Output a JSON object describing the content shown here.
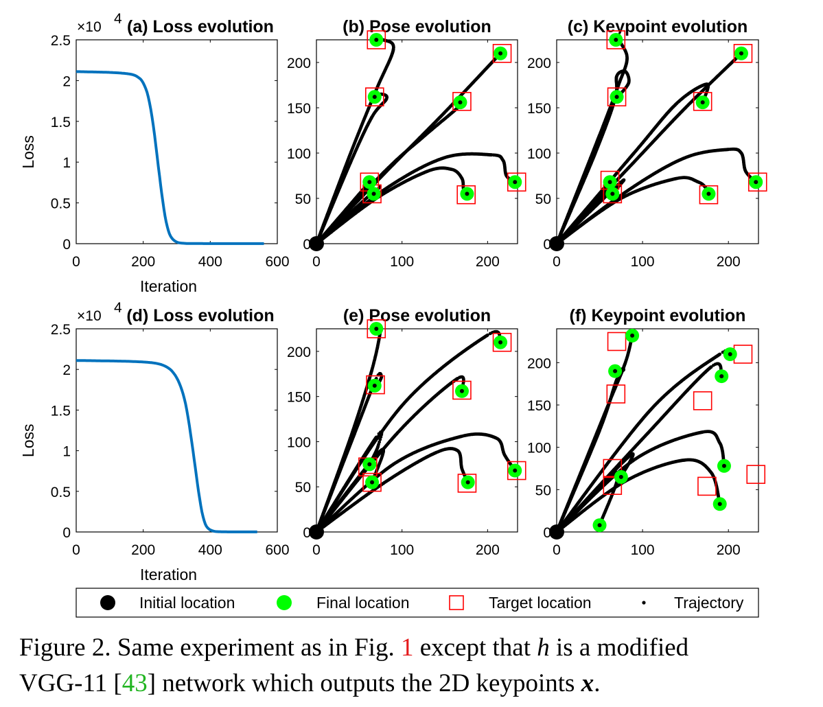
{
  "chart_data": [
    {
      "panel": "a",
      "type": "line",
      "title": "(a) Loss evolution",
      "xlabel": "Iteration",
      "ylabel": "Loss",
      "y_exponent_label": "×10",
      "y_exponent": "4",
      "xlim": [
        0,
        600
      ],
      "ylim": [
        0,
        2.5
      ],
      "xticks": [
        "0",
        "200",
        "400",
        "600"
      ],
      "yticks": [
        "0",
        "0.5",
        "1",
        "1.5",
        "2",
        "2.5"
      ],
      "series": [
        {
          "color": "#0072bd",
          "x": [
            0,
            100,
            160,
            185,
            200,
            215,
            230,
            245,
            255,
            265,
            275,
            285,
            300,
            320,
            350,
            400,
            450,
            500,
            560
          ],
          "y": [
            2.11,
            2.1,
            2.08,
            2.04,
            1.97,
            1.8,
            1.45,
            0.95,
            0.62,
            0.34,
            0.16,
            0.07,
            0.02,
            0.005,
            0.002,
            0.001,
            0.001,
            0.001,
            0.001
          ]
        }
      ]
    },
    {
      "panel": "b",
      "type": "scatter",
      "title": "(b) Pose evolution",
      "xlim": [
        0,
        235
      ],
      "ylim": [
        0,
        225
      ],
      "xticks": [
        "0",
        "100",
        "200"
      ],
      "yticks": [
        "0",
        "50",
        "100",
        "150",
        "200"
      ],
      "initial": [
        0,
        0
      ],
      "final": [
        [
          70,
          225
        ],
        [
          68,
          162
        ],
        [
          62,
          68
        ],
        [
          67,
          55
        ],
        [
          168,
          156
        ],
        [
          215,
          210
        ],
        [
          232,
          68
        ],
        [
          176,
          55
        ]
      ],
      "targets": [
        [
          70,
          225
        ],
        [
          68,
          162
        ],
        [
          62,
          68
        ],
        [
          65,
          55
        ],
        [
          170,
          157
        ],
        [
          217,
          210
        ],
        [
          234,
          68
        ],
        [
          175,
          54
        ]
      ],
      "trajectories": [
        [
          [
            0,
            0
          ],
          [
            40,
            100
          ],
          [
            70,
            170
          ],
          [
            90,
            215
          ],
          [
            78,
            225
          ],
          [
            70,
            225
          ]
        ],
        [
          [
            0,
            0
          ],
          [
            40,
            90
          ],
          [
            65,
            140
          ],
          [
            82,
            160
          ],
          [
            76,
            165
          ],
          [
            68,
            162
          ]
        ],
        [
          [
            0,
            0
          ],
          [
            62,
            68
          ]
        ],
        [
          [
            0,
            0
          ],
          [
            70,
            60
          ],
          [
            67,
            55
          ]
        ],
        [
          [
            0,
            0
          ],
          [
            80,
            80
          ],
          [
            125,
            118
          ],
          [
            165,
            150
          ],
          [
            168,
            156
          ]
        ],
        [
          [
            0,
            0
          ],
          [
            80,
            78
          ],
          [
            150,
            145
          ],
          [
            215,
            210
          ]
        ],
        [
          [
            0,
            0
          ],
          [
            80,
            60
          ],
          [
            150,
            95
          ],
          [
            205,
            98
          ],
          [
            218,
            92
          ],
          [
            222,
            75
          ],
          [
            232,
            68
          ]
        ],
        [
          [
            0,
            0
          ],
          [
            70,
            50
          ],
          [
            130,
            80
          ],
          [
            158,
            82
          ],
          [
            170,
            72
          ],
          [
            172,
            60
          ],
          [
            176,
            55
          ]
        ]
      ]
    },
    {
      "panel": "c",
      "type": "scatter",
      "title": "(c) Keypoint evolution",
      "xlim": [
        0,
        235
      ],
      "ylim": [
        0,
        225
      ],
      "xticks": [
        "0",
        "100",
        "200"
      ],
      "yticks": [
        "0",
        "50",
        "100",
        "150",
        "200"
      ],
      "initial": [
        0,
        0
      ],
      "final": [
        [
          69,
          225
        ],
        [
          70,
          162
        ],
        [
          62,
          68
        ],
        [
          65,
          55
        ],
        [
          170,
          156
        ],
        [
          215,
          210
        ],
        [
          232,
          68
        ],
        [
          177,
          55
        ]
      ],
      "targets": [
        [
          69,
          225
        ],
        [
          70,
          162
        ],
        [
          62,
          70
        ],
        [
          65,
          55
        ],
        [
          170,
          157
        ],
        [
          217,
          210
        ],
        [
          234,
          68
        ],
        [
          177,
          54
        ]
      ],
      "trajectories": [
        [
          [
            0,
            0
          ],
          [
            50,
            120
          ],
          [
            72,
            175
          ],
          [
            82,
            205
          ],
          [
            72,
            225
          ]
        ],
        [
          [
            0,
            0
          ],
          [
            45,
            100
          ],
          [
            68,
            160
          ],
          [
            70,
            185
          ],
          [
            80,
            190
          ],
          [
            84,
            178
          ],
          [
            74,
            165
          ],
          [
            70,
            162
          ]
        ],
        [
          [
            0,
            0
          ],
          [
            62,
            68
          ]
        ],
        [
          [
            0,
            0
          ],
          [
            75,
            68
          ],
          [
            65,
            55
          ]
        ],
        [
          [
            0,
            0
          ],
          [
            90,
            100
          ],
          [
            140,
            155
          ],
          [
            175,
            176
          ],
          [
            170,
            156
          ]
        ],
        [
          [
            0,
            0
          ],
          [
            85,
            85
          ],
          [
            150,
            150
          ],
          [
            215,
            210
          ]
        ],
        [
          [
            0,
            0
          ],
          [
            85,
            60
          ],
          [
            150,
            95
          ],
          [
            200,
            104
          ],
          [
            215,
            100
          ],
          [
            220,
            80
          ],
          [
            232,
            68
          ]
        ],
        [
          [
            0,
            0
          ],
          [
            75,
            50
          ],
          [
            140,
            72
          ],
          [
            165,
            68
          ],
          [
            175,
            60
          ],
          [
            177,
            55
          ]
        ]
      ]
    },
    {
      "panel": "d",
      "type": "line",
      "title": "(d) Loss evolution",
      "xlabel": "Iteration",
      "ylabel": "Loss",
      "y_exponent_label": "×10",
      "y_exponent": "4",
      "xlim": [
        0,
        600
      ],
      "ylim": [
        0,
        2.5
      ],
      "xticks": [
        "0",
        "200",
        "400",
        "600"
      ],
      "yticks": [
        "0",
        "0.5",
        "1",
        "1.5",
        "2",
        "2.5"
      ],
      "series": [
        {
          "color": "#0072bd",
          "x": [
            0,
            150,
            230,
            270,
            295,
            315,
            330,
            345,
            355,
            365,
            375,
            385,
            395,
            410,
            430,
            460,
            500,
            540
          ],
          "y": [
            2.11,
            2.1,
            2.08,
            2.03,
            1.93,
            1.75,
            1.5,
            1.1,
            0.8,
            0.5,
            0.25,
            0.1,
            0.04,
            0.01,
            0.003,
            0.001,
            0.001,
            0.001
          ]
        }
      ]
    },
    {
      "panel": "e",
      "type": "scatter",
      "title": "(e) Pose evolution",
      "xlim": [
        0,
        235
      ],
      "ylim": [
        0,
        225
      ],
      "xticks": [
        "0",
        "100",
        "200"
      ],
      "yticks": [
        "0",
        "50",
        "100",
        "150",
        "200"
      ],
      "initial": [
        0,
        0
      ],
      "final": [
        [
          70,
          225
        ],
        [
          68,
          162
        ],
        [
          62,
          75
        ],
        [
          65,
          55
        ],
        [
          170,
          156
        ],
        [
          215,
          210
        ],
        [
          232,
          68
        ],
        [
          177,
          55
        ]
      ],
      "targets": [
        [
          70,
          225
        ],
        [
          69,
          163
        ],
        [
          60,
          72
        ],
        [
          65,
          55
        ],
        [
          170,
          157
        ],
        [
          217,
          210
        ],
        [
          234,
          68
        ],
        [
          176,
          54
        ]
      ],
      "trajectories": [
        [
          [
            0,
            0
          ],
          [
            40,
            105
          ],
          [
            65,
            180
          ],
          [
            75,
            225
          ],
          [
            70,
            225
          ]
        ],
        [
          [
            0,
            0
          ],
          [
            45,
            110
          ],
          [
            70,
            170
          ],
          [
            76,
            172
          ],
          [
            72,
            164
          ],
          [
            68,
            162
          ]
        ],
        [
          [
            0,
            0
          ],
          [
            70,
            105
          ],
          [
            72,
            95
          ],
          [
            62,
            75
          ]
        ],
        [
          [
            0,
            0
          ],
          [
            75,
            90
          ],
          [
            65,
            55
          ]
        ],
        [
          [
            0,
            0
          ],
          [
            95,
            110
          ],
          [
            165,
            170
          ],
          [
            170,
            156
          ]
        ],
        [
          [
            0,
            0
          ],
          [
            100,
            140
          ],
          [
            200,
            218
          ],
          [
            215,
            210
          ]
        ],
        [
          [
            0,
            0
          ],
          [
            90,
            75
          ],
          [
            170,
            106
          ],
          [
            210,
            104
          ],
          [
            220,
            85
          ],
          [
            232,
            68
          ]
        ],
        [
          [
            0,
            0
          ],
          [
            80,
            55
          ],
          [
            140,
            88
          ],
          [
            165,
            90
          ],
          [
            170,
            70
          ],
          [
            177,
            55
          ]
        ]
      ]
    },
    {
      "panel": "f",
      "type": "scatter",
      "title": "(f) Keypoint evolution",
      "xlim": [
        0,
        235
      ],
      "ylim": [
        0,
        240
      ],
      "xticks": [
        "0",
        "100",
        "200"
      ],
      "yticks": [
        "0",
        "50",
        "100",
        "150",
        "200"
      ],
      "initial": [
        0,
        0
      ],
      "final": [
        [
          88,
          232
        ],
        [
          68,
          190
        ],
        [
          50,
          8
        ],
        [
          75,
          65
        ],
        [
          192,
          184
        ],
        [
          202,
          210
        ],
        [
          195,
          78
        ],
        [
          190,
          33
        ]
      ],
      "targets": [
        [
          70,
          225
        ],
        [
          69,
          163
        ],
        [
          65,
          75
        ],
        [
          65,
          55
        ],
        [
          170,
          155
        ],
        [
          217,
          210
        ],
        [
          232,
          68
        ],
        [
          175,
          54
        ]
      ],
      "trajectories": [
        [
          [
            0,
            0
          ],
          [
            60,
            150
          ],
          [
            80,
            200
          ],
          [
            88,
            232
          ]
        ],
        [
          [
            0,
            0
          ],
          [
            50,
            120
          ],
          [
            70,
            180
          ],
          [
            78,
            192
          ],
          [
            68,
            190
          ]
        ],
        [
          [
            0,
            0
          ],
          [
            70,
            70
          ],
          [
            50,
            8
          ]
        ],
        [
          [
            0,
            0
          ],
          [
            85,
            90
          ],
          [
            75,
            65
          ]
        ],
        [
          [
            0,
            0
          ],
          [
            100,
            110
          ],
          [
            180,
            195
          ],
          [
            192,
            184
          ]
        ],
        [
          [
            0,
            0
          ],
          [
            110,
            145
          ],
          [
            190,
            210
          ],
          [
            202,
            210
          ]
        ],
        [
          [
            0,
            0
          ],
          [
            90,
            85
          ],
          [
            170,
            118
          ],
          [
            190,
            105
          ],
          [
            195,
            78
          ]
        ],
        [
          [
            0,
            0
          ],
          [
            80,
            60
          ],
          [
            150,
            85
          ],
          [
            180,
            70
          ],
          [
            190,
            33
          ]
        ]
      ]
    }
  ],
  "legend": {
    "items": [
      {
        "label": "Initial location",
        "marker": "black-dot"
      },
      {
        "label": "Final location",
        "marker": "green-dot"
      },
      {
        "label": "Target location",
        "marker": "red-square"
      },
      {
        "label": "Trajectory",
        "marker": "small-dot"
      }
    ]
  },
  "caption": {
    "prefix": "Figure 2. Same experiment as in Fig. ",
    "ref1": "1",
    "mid1": " except that ",
    "var_h": "h",
    "mid2": " is a modified",
    "line2_prefix": "VGG-11 [",
    "ref2": "43",
    "line2_suffix": "] network which outputs the 2D keypoints ",
    "var_x": "x",
    "end": "."
  },
  "colors": {
    "loss": "#0072bd",
    "final": "#00ff00",
    "target": "#ff0000",
    "trajectory": "#000000"
  }
}
